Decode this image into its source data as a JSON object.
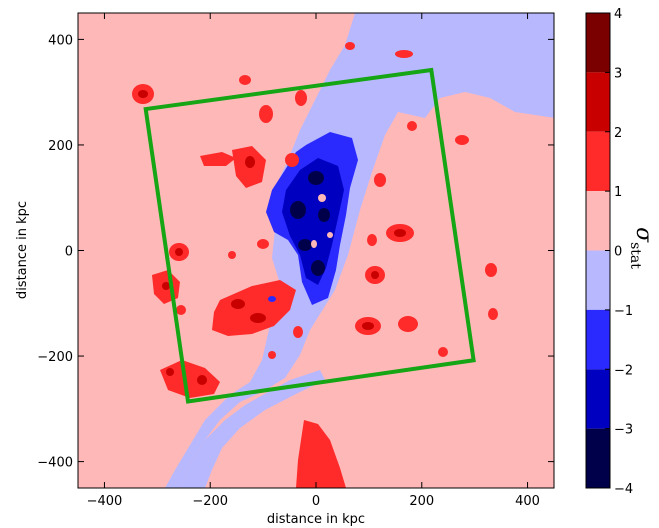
{
  "chart_data": {
    "type": "heatmap",
    "xlabel": "distance in kpc",
    "ylabel": "distance in kpc",
    "xlim": [
      -450,
      450
    ],
    "ylim": [
      -450,
      450
    ],
    "x_ticks": [
      -400,
      -200,
      0,
      200,
      400
    ],
    "y_ticks": [
      -400,
      -200,
      0,
      200,
      400
    ],
    "x_tick_labels": [
      "−400",
      "−200",
      "0",
      "200",
      "400"
    ],
    "y_tick_labels": [
      "−400",
      "−200",
      "0",
      "200",
      "400"
    ],
    "background_level": "0 to 1",
    "colorbar": {
      "label_symbol": "σ",
      "label_subscript": "stat",
      "range": [
        -4,
        4
      ],
      "ticks": [
        4,
        3,
        2,
        1,
        0,
        -1,
        -2,
        -3,
        -4
      ],
      "tick_labels": [
        "4",
        "3",
        "2",
        "1",
        "0",
        "−1",
        "−2",
        "−3",
        "−4"
      ],
      "levels": [
        {
          "from": 3,
          "to": 4,
          "color": "#7a0000"
        },
        {
          "from": 2,
          "to": 3,
          "color": "#c80000"
        },
        {
          "from": 1,
          "to": 2,
          "color": "#ff2a2a"
        },
        {
          "from": 0,
          "to": 1,
          "color": "#ffb8b8"
        },
        {
          "from": -1,
          "to": 0,
          "color": "#b8b8ff"
        },
        {
          "from": -2,
          "to": -1,
          "color": "#2a2aff"
        },
        {
          "from": -3,
          "to": -2,
          "color": "#0000c0"
        },
        {
          "from": -4,
          "to": -3,
          "color": "#00004a"
        }
      ]
    },
    "field_box": {
      "color": "#15a515",
      "corners": [
        [
          -322,
          268
        ],
        [
          218,
          342
        ],
        [
          298,
          -208
        ],
        [
          -242,
          -286
        ]
      ]
    }
  }
}
